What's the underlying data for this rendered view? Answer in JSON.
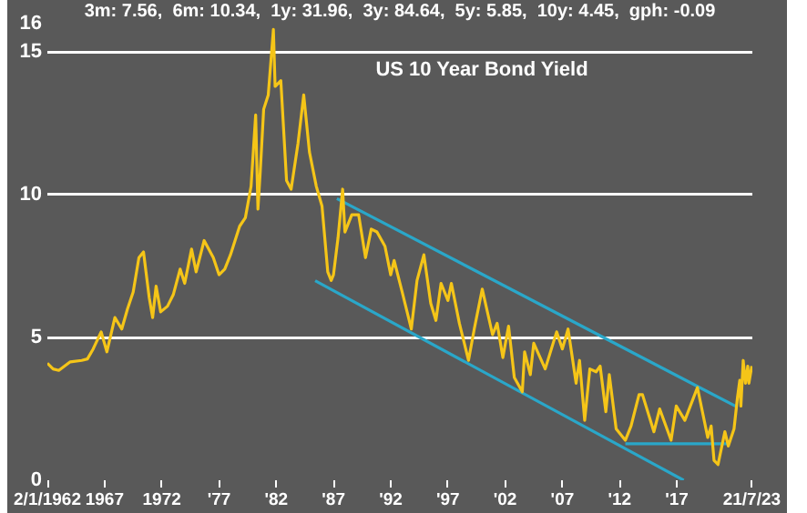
{
  "chart_data": {
    "type": "line",
    "title": "US 10 Year Bond Yield",
    "subtitle": "3m: 7.56,  6m: 10.34,  1y: 31.96,  3y: 84.64,  5y: 5.85,  10y: 4.45,  gph: -0.09",
    "xlim": [
      1962,
      2023.6
    ],
    "xticks": [
      {
        "value": 1962,
        "label": "2/1/1962"
      },
      {
        "value": 1967,
        "label": "1967"
      },
      {
        "value": 1972,
        "label": "1972"
      },
      {
        "value": 1977,
        "label": "'77"
      },
      {
        "value": 1982,
        "label": "'82"
      },
      {
        "value": 1987,
        "label": "'87"
      },
      {
        "value": 1992,
        "label": "'92"
      },
      {
        "value": 1997,
        "label": "'97"
      },
      {
        "value": 2002,
        "label": "'02"
      },
      {
        "value": 2007,
        "label": "'07"
      },
      {
        "value": 2012,
        "label": "'12"
      },
      {
        "value": 2017,
        "label": "'17"
      },
      {
        "value": 2023.55,
        "label": "21/7/23"
      }
    ],
    "ylim": [
      0,
      16
    ],
    "yticks": [
      0,
      5,
      10,
      15,
      16
    ],
    "grid": "y",
    "legend": false,
    "marker": "none",
    "line_style": "solid",
    "series": [
      {
        "color": "#f5c518",
        "x": [
          1962,
          1962.5,
          1963,
          1963.5,
          1964,
          1965,
          1965.5,
          1966,
          1966.7,
          1967.2,
          1967.9,
          1968.5,
          1969,
          1969.5,
          1970,
          1970.4,
          1970.9,
          1971.2,
          1971.5,
          1971.9,
          1972.5,
          1973,
          1973.6,
          1974,
          1974.6,
          1975,
          1975.7,
          1976.5,
          1977,
          1977.5,
          1978,
          1978.8,
          1979.3,
          1979.8,
          1980.2,
          1980.4,
          1980.6,
          1980.9,
          1981.3,
          1981.75,
          1981.9,
          1982.4,
          1982.9,
          1983.3,
          1983.9,
          1984.4,
          1984.9,
          1985.5,
          1986,
          1986.5,
          1986.8,
          1987,
          1987.4,
          1987.8,
          1988,
          1988.6,
          1989.2,
          1989.8,
          1990.3,
          1990.8,
          1991.5,
          1992,
          1992.3,
          1993,
          1993.8,
          1994.3,
          1994.9,
          1995.5,
          1995.95,
          1996.4,
          1997,
          1997.3,
          1998,
          1998.8,
          1999.3,
          2000,
          2000.9,
          2001.3,
          2001.8,
          2002.3,
          2002.8,
          2003.5,
          2003.7,
          2004.2,
          2004.5,
          2005.5,
          2006.5,
          2007,
          2007.5,
          2008.2,
          2008.5,
          2008.95,
          2009.4,
          2009.95,
          2010.3,
          2010.8,
          2011.1,
          2011.7,
          2012.5,
          2013,
          2013.7,
          2014,
          2015,
          2015.5,
          2016.5,
          2016.95,
          2017.7,
          2018.8,
          2019.7,
          2020,
          2020.25,
          2020.6,
          2021.2,
          2021.5,
          2022,
          2022.3,
          2022.5,
          2022.6,
          2022.8,
          2023,
          2023.2,
          2023.3,
          2023.55
        ],
        "values": [
          4.1,
          3.9,
          3.85,
          4.0,
          4.15,
          4.2,
          4.25,
          4.6,
          5.2,
          4.5,
          5.7,
          5.3,
          6.0,
          6.6,
          7.8,
          8.0,
          6.4,
          5.7,
          6.8,
          5.9,
          6.1,
          6.5,
          7.4,
          6.9,
          8.1,
          7.3,
          8.4,
          7.8,
          7.2,
          7.4,
          7.9,
          8.9,
          9.2,
          10.3,
          12.8,
          9.5,
          10.8,
          13.0,
          13.5,
          15.8,
          13.8,
          14.0,
          10.5,
          10.2,
          11.8,
          13.5,
          11.5,
          10.3,
          9.6,
          7.3,
          7.0,
          7.2,
          8.5,
          10.2,
          8.7,
          9.3,
          9.3,
          7.8,
          8.8,
          8.7,
          8.2,
          7.2,
          7.7,
          6.6,
          5.3,
          7.0,
          7.9,
          6.2,
          5.6,
          6.9,
          6.3,
          6.9,
          5.5,
          4.2,
          5.3,
          6.7,
          5.1,
          5.5,
          4.3,
          5.4,
          3.6,
          3.1,
          4.5,
          3.7,
          4.8,
          3.9,
          5.2,
          4.6,
          5.3,
          3.4,
          4.2,
          2.1,
          3.9,
          3.8,
          4.0,
          2.4,
          3.7,
          1.8,
          1.4,
          1.9,
          3.0,
          3.0,
          1.7,
          2.5,
          1.4,
          2.6,
          2.1,
          3.25,
          1.5,
          1.9,
          0.7,
          0.55,
          1.7,
          1.2,
          1.8,
          2.9,
          3.5,
          2.6,
          4.2,
          3.4,
          4.0,
          3.4,
          4.0
        ]
      },
      {
        "type": "line",
        "color": "#2aa7c9",
        "x": [
          1987.3,
          2022.3
        ],
        "values": [
          9.87,
          2.56
        ]
      },
      {
        "type": "line",
        "color": "#2aa7c9",
        "x": [
          1985.4,
          2017.6
        ],
        "values": [
          6.99,
          0
        ]
      },
      {
        "type": "line",
        "color": "#2aa7c9",
        "x": [
          2012.5,
          2021.5
        ],
        "values": [
          1.28,
          1.28
        ]
      }
    ]
  }
}
